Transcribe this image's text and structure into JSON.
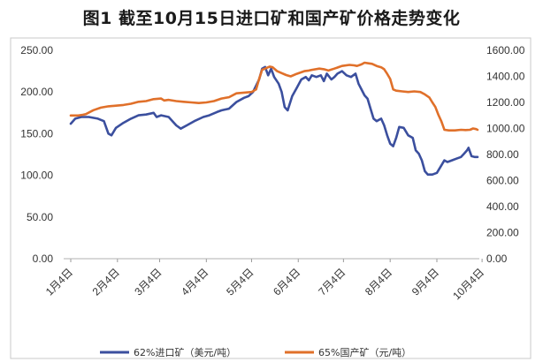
{
  "chart_data": {
    "type": "line",
    "title": "图1 截至10月15日进口矿和国产矿价格走势变化",
    "x_ticks": [
      "1月4日",
      "2月4日",
      "3月4日",
      "4月4日",
      "5月4日",
      "6月4日",
      "7月4日",
      "8月4日",
      "9月4日",
      "10月4日"
    ],
    "x_range": [
      "1月4日",
      "10月15日"
    ],
    "y_left": {
      "range": [
        0,
        250
      ],
      "ticks": [
        "0.00",
        "50.00",
        "100.00",
        "150.00",
        "200.00",
        "250.00"
      ]
    },
    "y_right": {
      "range": [
        0,
        1600
      ],
      "ticks": [
        "0.00",
        "200.00",
        "400.00",
        "600.00",
        "800.00",
        "1000.00",
        "1200.00",
        "1400.00",
        "1600.00"
      ]
    },
    "grid": false,
    "legend_position": "bottom",
    "series": [
      {
        "name": "62%进口矿（美元/吨）",
        "axis": "left",
        "color": "#3b4f9e",
        "points": [
          [
            0,
            162
          ],
          [
            3,
            168
          ],
          [
            7,
            170
          ],
          [
            12,
            170
          ],
          [
            18,
            168
          ],
          [
            22,
            165
          ],
          [
            25,
            150
          ],
          [
            27,
            148
          ],
          [
            30,
            157
          ],
          [
            35,
            163
          ],
          [
            40,
            168
          ],
          [
            45,
            172
          ],
          [
            50,
            173
          ],
          [
            55,
            175
          ],
          [
            57,
            170
          ],
          [
            60,
            172
          ],
          [
            65,
            170
          ],
          [
            70,
            160
          ],
          [
            73,
            156
          ],
          [
            77,
            160
          ],
          [
            82,
            165
          ],
          [
            88,
            170
          ],
          [
            92,
            172
          ],
          [
            97,
            176
          ],
          [
            100,
            178
          ],
          [
            105,
            180
          ],
          [
            110,
            188
          ],
          [
            115,
            193
          ],
          [
            118,
            195
          ],
          [
            121,
            200
          ],
          [
            125,
            215
          ],
          [
            127,
            228
          ],
          [
            129,
            230
          ],
          [
            131,
            220
          ],
          [
            133,
            228
          ],
          [
            135,
            218
          ],
          [
            138,
            210
          ],
          [
            140,
            200
          ],
          [
            142,
            182
          ],
          [
            144,
            178
          ],
          [
            147,
            195
          ],
          [
            150,
            205
          ],
          [
            153,
            215
          ],
          [
            156,
            218
          ],
          [
            158,
            214
          ],
          [
            160,
            220
          ],
          [
            163,
            218
          ],
          [
            166,
            220
          ],
          [
            168,
            213
          ],
          [
            170,
            222
          ],
          [
            173,
            215
          ],
          [
            175,
            218
          ],
          [
            177,
            222
          ],
          [
            180,
            225
          ],
          [
            183,
            220
          ],
          [
            186,
            218
          ],
          [
            189,
            222
          ],
          [
            191,
            210
          ],
          [
            193,
            203
          ],
          [
            195,
            196
          ],
          [
            197,
            192
          ],
          [
            199,
            180
          ],
          [
            201,
            168
          ],
          [
            203,
            165
          ],
          [
            206,
            168
          ],
          [
            208,
            160
          ],
          [
            210,
            148
          ],
          [
            212,
            138
          ],
          [
            214,
            135
          ],
          [
            216,
            145
          ],
          [
            218,
            158
          ],
          [
            221,
            157
          ],
          [
            224,
            148
          ],
          [
            227,
            145
          ],
          [
            229,
            130
          ],
          [
            231,
            126
          ],
          [
            233,
            118
          ],
          [
            235,
            105
          ],
          [
            237,
            101
          ],
          [
            240,
            101
          ],
          [
            243,
            103
          ],
          [
            246,
            112
          ],
          [
            248,
            118
          ],
          [
            250,
            116
          ],
          [
            253,
            118
          ],
          [
            256,
            120
          ],
          [
            259,
            122
          ],
          [
            261,
            126
          ],
          [
            263,
            130
          ],
          [
            264,
            133
          ],
          [
            265,
            128
          ],
          [
            266,
            123
          ],
          [
            268,
            122
          ],
          [
            270,
            122
          ]
        ]
      },
      {
        "name": "65%国产矿（元/吨）",
        "axis": "right",
        "color": "#e0702a",
        "points": [
          [
            0,
            1100
          ],
          [
            5,
            1100
          ],
          [
            8,
            1105
          ],
          [
            10,
            1110
          ],
          [
            15,
            1140
          ],
          [
            20,
            1160
          ],
          [
            25,
            1170
          ],
          [
            30,
            1175
          ],
          [
            35,
            1180
          ],
          [
            40,
            1190
          ],
          [
            45,
            1205
          ],
          [
            50,
            1210
          ],
          [
            55,
            1225
          ],
          [
            60,
            1230
          ],
          [
            62,
            1215
          ],
          [
            65,
            1220
          ],
          [
            70,
            1210
          ],
          [
            75,
            1205
          ],
          [
            80,
            1200
          ],
          [
            85,
            1195
          ],
          [
            90,
            1200
          ],
          [
            95,
            1210
          ],
          [
            100,
            1230
          ],
          [
            105,
            1240
          ],
          [
            110,
            1270
          ],
          [
            115,
            1275
          ],
          [
            120,
            1280
          ],
          [
            123,
            1300
          ],
          [
            125,
            1380
          ],
          [
            127,
            1450
          ],
          [
            129,
            1460
          ],
          [
            132,
            1475
          ],
          [
            134,
            1470
          ],
          [
            137,
            1440
          ],
          [
            140,
            1425
          ],
          [
            143,
            1410
          ],
          [
            146,
            1400
          ],
          [
            150,
            1420
          ],
          [
            155,
            1440
          ],
          [
            158,
            1445
          ],
          [
            160,
            1450
          ],
          [
            165,
            1460
          ],
          [
            168,
            1455
          ],
          [
            171,
            1445
          ],
          [
            175,
            1460
          ],
          [
            180,
            1480
          ],
          [
            185,
            1488
          ],
          [
            188,
            1485
          ],
          [
            190,
            1480
          ],
          [
            193,
            1492
          ],
          [
            195,
            1505
          ],
          [
            198,
            1500
          ],
          [
            200,
            1496
          ],
          [
            203,
            1480
          ],
          [
            206,
            1470
          ],
          [
            208,
            1455
          ],
          [
            210,
            1420
          ],
          [
            212,
            1380
          ],
          [
            214,
            1300
          ],
          [
            216,
            1290
          ],
          [
            220,
            1285
          ],
          [
            224,
            1280
          ],
          [
            228,
            1285
          ],
          [
            232,
            1280
          ],
          [
            235,
            1262
          ],
          [
            238,
            1238
          ],
          [
            240,
            1200
          ],
          [
            242,
            1165
          ],
          [
            244,
            1105
          ],
          [
            246,
            1055
          ],
          [
            248,
            990
          ],
          [
            251,
            985
          ],
          [
            255,
            985
          ],
          [
            259,
            990
          ],
          [
            262,
            988
          ],
          [
            265,
            990
          ],
          [
            267,
            1000
          ],
          [
            269,
            995
          ],
          [
            270,
            990
          ]
        ]
      }
    ]
  }
}
